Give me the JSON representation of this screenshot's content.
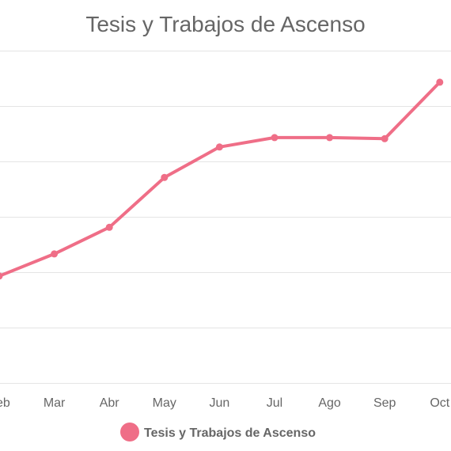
{
  "chart_data": {
    "type": "line",
    "title": "Tesis y Trabajos de Ascenso",
    "categories": [
      "Feb",
      "Mar",
      "Abr",
      "May",
      "Jun",
      "Jul",
      "Ago",
      "Sep",
      "Oct"
    ],
    "series": [
      {
        "name": "Tesis y Trabajos de Ascenso",
        "values": [
          1.93,
          2.33,
          2.81,
          3.71,
          4.26,
          4.43,
          4.43,
          4.41,
          5.43
        ]
      }
    ],
    "ylim": [
      0,
      6
    ],
    "grid": true,
    "y_tick_labels_visible": false,
    "legend_position": "bottom",
    "colors": {
      "series": "#ef6e87",
      "grid": "#e4e4e4",
      "text": "#666666"
    }
  }
}
